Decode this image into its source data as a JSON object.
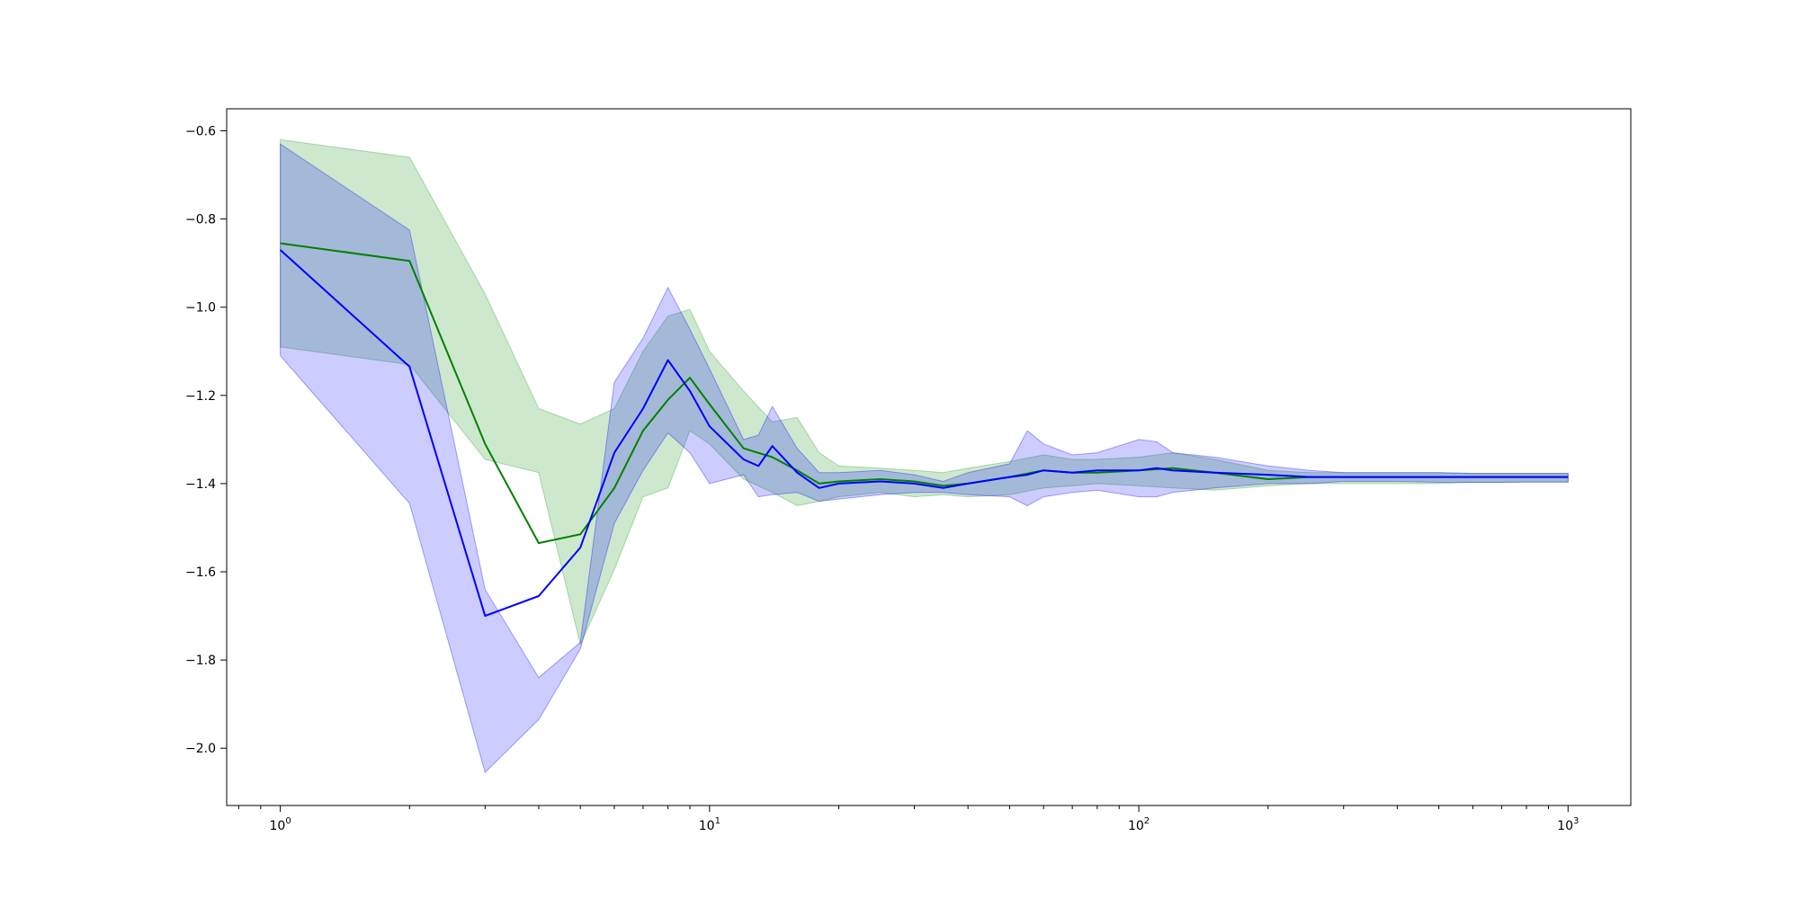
{
  "chart_data": {
    "type": "line",
    "title": "",
    "xlabel": "",
    "ylabel": "",
    "x_scale": "log",
    "xlim": [
      0.75,
      1400
    ],
    "ylim": [
      -2.13,
      -0.55
    ],
    "grid": false,
    "x_ticks": [
      {
        "value": 1,
        "base": "10",
        "exp": "0"
      },
      {
        "value": 10,
        "base": "10",
        "exp": "1"
      },
      {
        "value": 100,
        "base": "10",
        "exp": "2"
      },
      {
        "value": 1000,
        "base": "10",
        "exp": "3"
      }
    ],
    "y_ticks": [
      {
        "value": -0.6,
        "label": "−0.6"
      },
      {
        "value": -0.8,
        "label": "−0.8"
      },
      {
        "value": -1.0,
        "label": "−1.0"
      },
      {
        "value": -1.2,
        "label": "−1.2"
      },
      {
        "value": -1.4,
        "label": "−1.4"
      },
      {
        "value": -1.6,
        "label": "−1.6"
      },
      {
        "value": -1.8,
        "label": "−1.8"
      },
      {
        "value": -2.0,
        "label": "−2.0"
      }
    ],
    "series": [
      {
        "color": "#008000",
        "band_color": "#2ca02c",
        "band_opacity": 0.24,
        "x": [
          1,
          2,
          3,
          4,
          5,
          6,
          7,
          8,
          9,
          10,
          12,
          14,
          16,
          18,
          20,
          25,
          30,
          35,
          40,
          50,
          60,
          70,
          80,
          100,
          120,
          150,
          200,
          250,
          300,
          400,
          500,
          600,
          700,
          800,
          900,
          1000
        ],
        "y": [
          -0.855,
          -0.895,
          -1.31,
          -1.535,
          -1.515,
          -1.41,
          -1.28,
          -1.21,
          -1.16,
          -1.22,
          -1.32,
          -1.34,
          -1.37,
          -1.4,
          -1.395,
          -1.39,
          -1.395,
          -1.405,
          -1.4,
          -1.385,
          -1.37,
          -1.375,
          -1.375,
          -1.37,
          -1.365,
          -1.375,
          -1.39,
          -1.385,
          -1.385,
          -1.385,
          -1.385,
          -1.385,
          -1.385,
          -1.385,
          -1.385,
          -1.385
        ],
        "lower": [
          -1.09,
          -1.13,
          -1.345,
          -1.375,
          -1.765,
          -1.595,
          -1.43,
          -1.41,
          -1.28,
          -1.31,
          -1.39,
          -1.42,
          -1.45,
          -1.44,
          -1.43,
          -1.42,
          -1.43,
          -1.425,
          -1.43,
          -1.425,
          -1.41,
          -1.405,
          -1.4,
          -1.405,
          -1.41,
          -1.415,
          -1.405,
          -1.4,
          -1.4,
          -1.4,
          -1.4,
          -1.397,
          -1.397,
          -1.395,
          -1.395,
          -1.395
        ],
        "upper": [
          -0.62,
          -0.66,
          -0.97,
          -1.23,
          -1.265,
          -1.23,
          -1.1,
          -1.02,
          -1.005,
          -1.1,
          -1.19,
          -1.26,
          -1.25,
          -1.33,
          -1.36,
          -1.365,
          -1.37,
          -1.375,
          -1.365,
          -1.35,
          -1.335,
          -1.345,
          -1.345,
          -1.34,
          -1.33,
          -1.345,
          -1.37,
          -1.375,
          -1.375,
          -1.375,
          -1.375,
          -1.377,
          -1.377,
          -1.377,
          -1.377,
          -1.377
        ]
      },
      {
        "color": "#0000ff",
        "band_color": "#0000ff",
        "band_opacity": 0.2,
        "x": [
          1,
          2,
          3,
          4,
          5,
          6,
          7,
          8,
          9,
          10,
          12,
          13,
          14,
          16,
          18,
          20,
          25,
          30,
          35,
          40,
          50,
          55,
          60,
          70,
          80,
          100,
          110,
          120,
          150,
          200,
          250,
          300,
          400,
          500,
          600,
          700,
          800,
          900,
          1000
        ],
        "y": [
          -0.87,
          -1.135,
          -1.7,
          -1.655,
          -1.545,
          -1.33,
          -1.23,
          -1.12,
          -1.19,
          -1.27,
          -1.345,
          -1.36,
          -1.315,
          -1.375,
          -1.41,
          -1.4,
          -1.395,
          -1.4,
          -1.41,
          -1.4,
          -1.385,
          -1.38,
          -1.37,
          -1.375,
          -1.37,
          -1.37,
          -1.365,
          -1.37,
          -1.375,
          -1.38,
          -1.385,
          -1.385,
          -1.385,
          -1.385,
          -1.385,
          -1.385,
          -1.385,
          -1.385,
          -1.385
        ],
        "lower": [
          -1.11,
          -1.445,
          -2.055,
          -1.935,
          -1.775,
          -1.49,
          -1.37,
          -1.285,
          -1.33,
          -1.4,
          -1.38,
          -1.43,
          -1.425,
          -1.42,
          -1.44,
          -1.435,
          -1.425,
          -1.42,
          -1.42,
          -1.425,
          -1.43,
          -1.45,
          -1.43,
          -1.42,
          -1.415,
          -1.43,
          -1.43,
          -1.42,
          -1.41,
          -1.4,
          -1.4,
          -1.395,
          -1.395,
          -1.397,
          -1.397,
          -1.397,
          -1.397,
          -1.397,
          -1.397
        ],
        "upper": [
          -0.63,
          -0.825,
          -1.64,
          -1.84,
          -1.76,
          -1.17,
          -1.07,
          -0.955,
          -1.05,
          -1.14,
          -1.3,
          -1.29,
          -1.225,
          -1.32,
          -1.375,
          -1.375,
          -1.37,
          -1.38,
          -1.395,
          -1.375,
          -1.355,
          -1.28,
          -1.31,
          -1.335,
          -1.33,
          -1.3,
          -1.305,
          -1.33,
          -1.34,
          -1.36,
          -1.37,
          -1.375,
          -1.375,
          -1.375,
          -1.377,
          -1.377,
          -1.377,
          -1.377,
          -1.377
        ]
      }
    ]
  }
}
